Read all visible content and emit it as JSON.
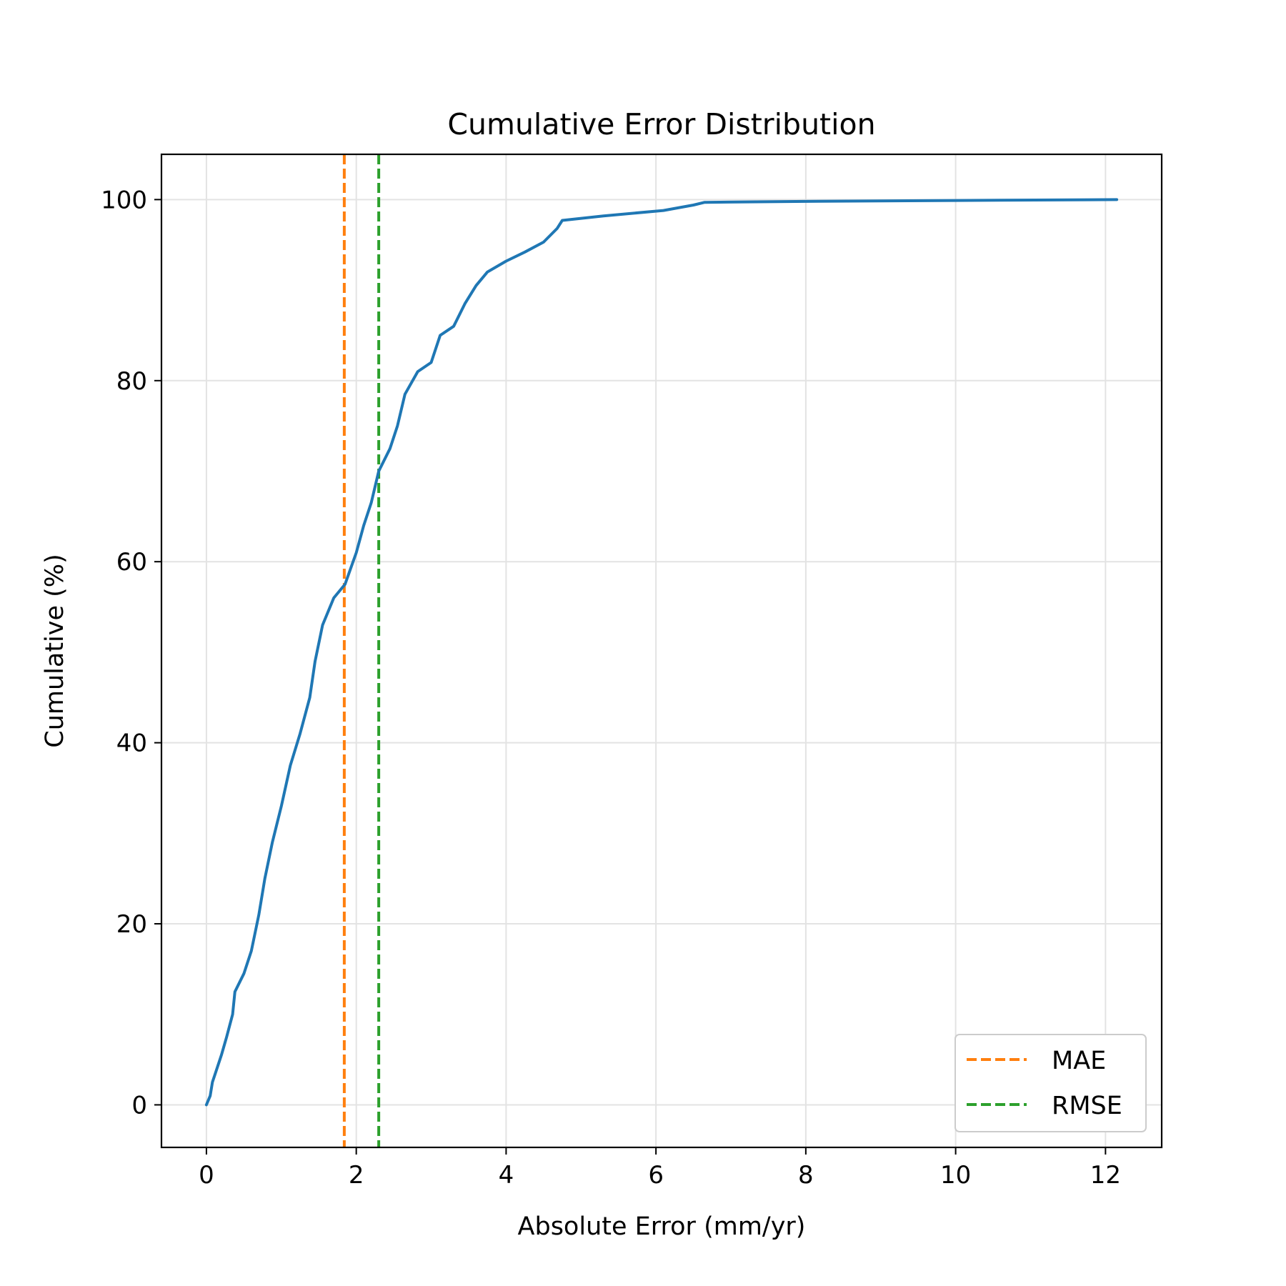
{
  "chart_data": {
    "type": "line",
    "title": "Cumulative Error Distribution",
    "xlabel": "Absolute Error (mm/yr)",
    "ylabel": "Cumulative (%)",
    "xlim": [
      -0.6,
      12.75
    ],
    "ylim": [
      -4.7,
      105
    ],
    "xticks": [
      0,
      2,
      4,
      6,
      8,
      10,
      12
    ],
    "xtick_labels": [
      "0",
      "2",
      "4",
      "6",
      "8",
      "10",
      "12"
    ],
    "yticks": [
      0,
      20,
      40,
      60,
      80,
      100
    ],
    "ytick_labels": [
      "0",
      "20",
      "40",
      "60",
      "80",
      "100"
    ],
    "grid": true,
    "legend_position": "lower-right",
    "series": [
      {
        "color": "#1f77b4",
        "points": [
          [
            0.0,
            0.0
          ],
          [
            0.05,
            1.0
          ],
          [
            0.08,
            2.5
          ],
          [
            0.12,
            3.5
          ],
          [
            0.2,
            5.5
          ],
          [
            0.27,
            7.5
          ],
          [
            0.35,
            10.0
          ],
          [
            0.38,
            12.5
          ],
          [
            0.5,
            14.5
          ],
          [
            0.6,
            17.0
          ],
          [
            0.7,
            21.0
          ],
          [
            0.78,
            25.0
          ],
          [
            0.88,
            29.0
          ],
          [
            1.0,
            33.0
          ],
          [
            1.12,
            37.5
          ],
          [
            1.25,
            41.0
          ],
          [
            1.38,
            45.0
          ],
          [
            1.45,
            49.0
          ],
          [
            1.55,
            53.0
          ],
          [
            1.7,
            56.0
          ],
          [
            1.85,
            57.5
          ],
          [
            2.0,
            61.0
          ],
          [
            2.1,
            64.0
          ],
          [
            2.2,
            66.5
          ],
          [
            2.3,
            70.0
          ],
          [
            2.45,
            72.5
          ],
          [
            2.55,
            75.0
          ],
          [
            2.65,
            78.5
          ],
          [
            2.82,
            81.0
          ],
          [
            3.0,
            82.0
          ],
          [
            3.12,
            85.0
          ],
          [
            3.3,
            86.0
          ],
          [
            3.45,
            88.5
          ],
          [
            3.6,
            90.5
          ],
          [
            3.75,
            92.0
          ],
          [
            4.0,
            93.2
          ],
          [
            4.25,
            94.2
          ],
          [
            4.5,
            95.3
          ],
          [
            4.68,
            96.8
          ],
          [
            4.75,
            97.7
          ],
          [
            5.3,
            98.2
          ],
          [
            6.1,
            98.8
          ],
          [
            6.5,
            99.4
          ],
          [
            6.65,
            99.7
          ],
          [
            8.0,
            99.8
          ],
          [
            10.0,
            99.9
          ],
          [
            12.15,
            100.0
          ]
        ]
      }
    ],
    "reference_lines": [
      {
        "name": "MAE",
        "x": 1.84,
        "color": "#ff7f0e"
      },
      {
        "name": "RMSE",
        "x": 2.3,
        "color": "#2ca02c"
      }
    ]
  }
}
